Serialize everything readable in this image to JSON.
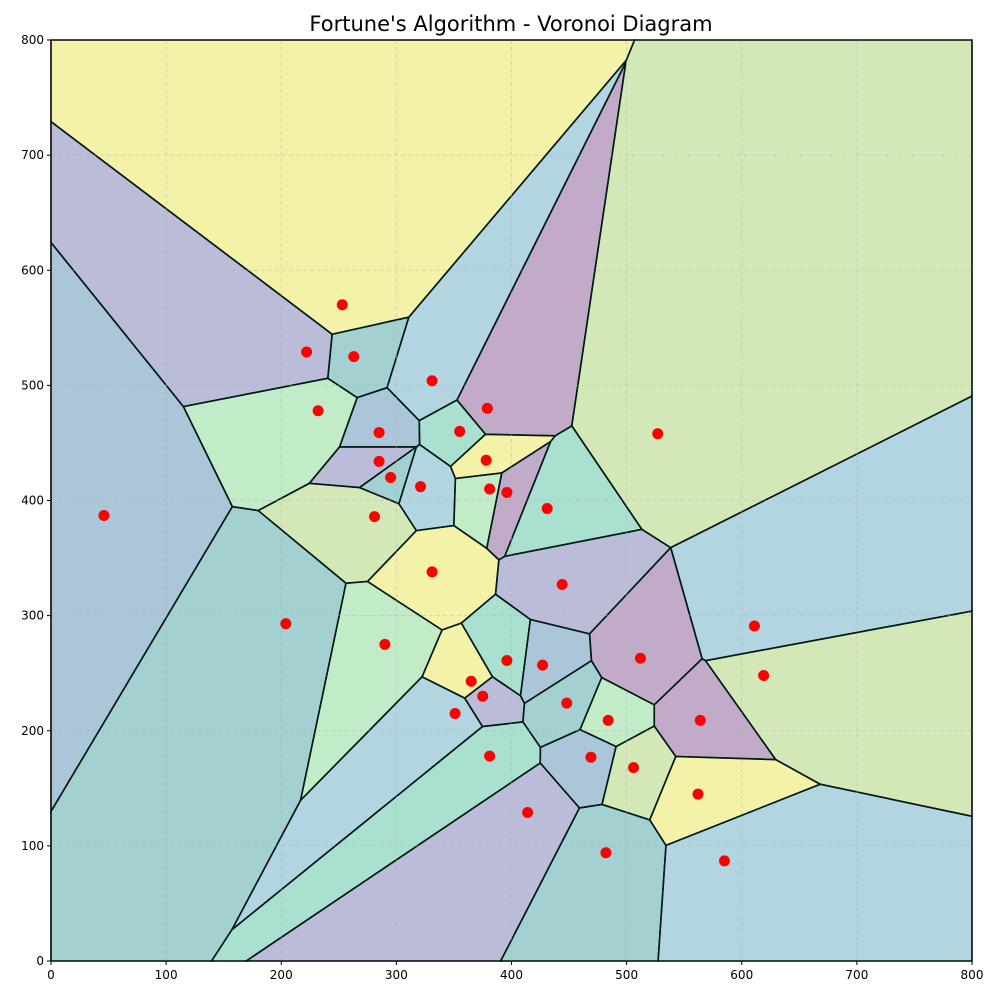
{
  "chart_data": {
    "type": "scatter",
    "title": "Fortune's Algorithm - Voronoi Diagram",
    "xlabel": "",
    "ylabel": "",
    "xlim": [
      0,
      800
    ],
    "ylim": [
      0,
      800
    ],
    "grid": true,
    "x_ticks": [
      0,
      100,
      200,
      300,
      400,
      500,
      600,
      700,
      800
    ],
    "y_ticks": [
      0,
      100,
      200,
      300,
      400,
      500,
      600,
      700,
      800
    ],
    "colors": {
      "site": "#ff0000",
      "cell_palette": [
        "#4dbf9a",
        "#6e72ad",
        "#7e4f8e",
        "#e9e14a",
        "#7fd68a",
        "#a6cf68",
        "#5fa8c0",
        "#4f86b0",
        "#3f9fa0"
      ]
    },
    "sites": [
      {
        "x": 253,
        "y": 570
      },
      {
        "x": 222,
        "y": 529
      },
      {
        "x": 263,
        "y": 525
      },
      {
        "x": 331,
        "y": 504
      },
      {
        "x": 232,
        "y": 478
      },
      {
        "x": 379,
        "y": 480
      },
      {
        "x": 355,
        "y": 460
      },
      {
        "x": 285,
        "y": 459
      },
      {
        "x": 527,
        "y": 458
      },
      {
        "x": 378,
        "y": 435
      },
      {
        "x": 285,
        "y": 434
      },
      {
        "x": 295,
        "y": 420
      },
      {
        "x": 321,
        "y": 412
      },
      {
        "x": 381,
        "y": 410
      },
      {
        "x": 396,
        "y": 407
      },
      {
        "x": 431,
        "y": 393
      },
      {
        "x": 46,
        "y": 387
      },
      {
        "x": 281,
        "y": 386
      },
      {
        "x": 331,
        "y": 338
      },
      {
        "x": 444,
        "y": 327
      },
      {
        "x": 204,
        "y": 293
      },
      {
        "x": 611,
        "y": 291
      },
      {
        "x": 290,
        "y": 275
      },
      {
        "x": 512,
        "y": 263
      },
      {
        "x": 396,
        "y": 261
      },
      {
        "x": 427,
        "y": 257
      },
      {
        "x": 619,
        "y": 248
      },
      {
        "x": 365,
        "y": 243
      },
      {
        "x": 375,
        "y": 230
      },
      {
        "x": 448,
        "y": 224
      },
      {
        "x": 351,
        "y": 215
      },
      {
        "x": 484,
        "y": 209
      },
      {
        "x": 564,
        "y": 209
      },
      {
        "x": 381,
        "y": 178
      },
      {
        "x": 469,
        "y": 177
      },
      {
        "x": 506,
        "y": 168
      },
      {
        "x": 562,
        "y": 145
      },
      {
        "x": 414,
        "y": 129
      },
      {
        "x": 482,
        "y": 94
      },
      {
        "x": 585,
        "y": 87
      }
    ]
  }
}
